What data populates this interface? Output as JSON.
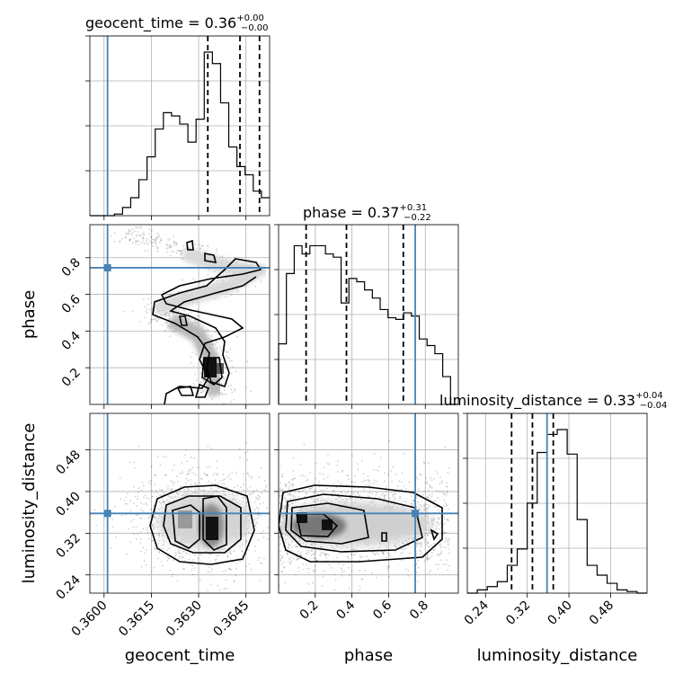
{
  "chart_data": {
    "type": "corner",
    "parameters": [
      {
        "name": "geocent_time",
        "median": "0.36",
        "plus": "+0.00",
        "minus": "−0.00",
        "injection": 0.36011
      },
      {
        "name": "phase",
        "median": "0.37",
        "plus": "+0.31",
        "minus": "−0.22",
        "injection": 0.745
      },
      {
        "name": "luminosity_distance",
        "median": "0.33",
        "plus": "+0.04",
        "minus": "−0.04",
        "injection": 0.358
      }
    ],
    "axes": {
      "geocent_time": {
        "range": [
          0.35955,
          0.36525
        ],
        "ticks": [
          0.36,
          0.3615,
          0.363,
          0.3645
        ],
        "tick_labels": [
          "0.3600",
          "0.3615",
          "0.3630",
          "0.3645"
        ]
      },
      "phase": {
        "range": [
          0.0,
          0.98
        ],
        "ticks": [
          0.2,
          0.4,
          0.6,
          0.8
        ],
        "tick_labels": [
          "0.2",
          "0.4",
          "0.6",
          "0.8"
        ]
      },
      "luminosity_distance": {
        "range": [
          0.205,
          0.55
        ],
        "ticks": [
          0.24,
          0.32,
          0.4,
          0.48
        ],
        "tick_labels": [
          "0.24",
          "0.32",
          "0.40",
          "0.48"
        ]
      }
    },
    "histograms": {
      "geocent_time": {
        "counts": [
          0,
          0,
          0,
          0.01,
          0.05,
          0.11,
          0.22,
          0.36,
          0.53,
          0.63,
          0.61,
          0.56,
          0.45,
          0.59,
          1.0,
          0.93,
          0.69,
          0.42,
          0.3,
          0.25,
          0.15,
          0.11
        ],
        "quantile_lines": [
          0.36329,
          0.36431,
          0.36493
        ]
      },
      "phase": {
        "counts": [
          0.37,
          0.8,
          0.97,
          0.92,
          0.97,
          0.97,
          0.92,
          0.9,
          0.62,
          0.77,
          0.75,
          0.7,
          0.65,
          0.58,
          0.53,
          0.52,
          0.56,
          0.54,
          0.4,
          0.36,
          0.31,
          0.17,
          0.0
        ],
        "quantile_lines": [
          0.15,
          0.37,
          0.68
        ]
      },
      "luminosity_distance": {
        "counts": [
          0.0,
          0.02,
          0.04,
          0.07,
          0.17,
          0.27,
          0.55,
          0.86,
          0.97,
          1.0,
          0.85,
          0.45,
          0.17,
          0.11,
          0.06,
          0.02,
          0.01,
          0.0
        ],
        "quantile_lines": [
          0.29,
          0.33,
          0.37
        ]
      }
    },
    "contour_levels": 4,
    "truth_color": "#4682b4",
    "grid": true
  }
}
